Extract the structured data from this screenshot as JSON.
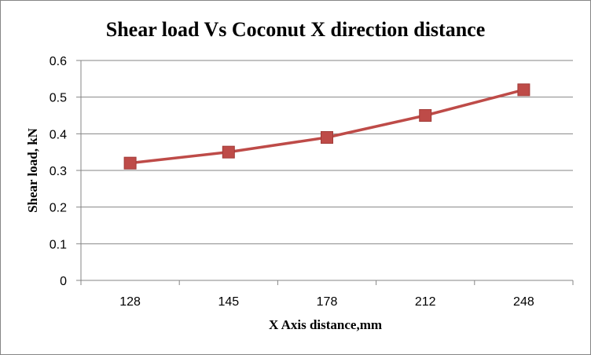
{
  "chart_data": {
    "type": "line",
    "title": "Shear load Vs Coconut X direction distance",
    "xlabel": "X Axis distance,mm",
    "ylabel": "Shear load, kN",
    "categories": [
      "128",
      "145",
      "178",
      "212",
      "248"
    ],
    "series": [
      {
        "values": [
          0.32,
          0.35,
          0.39,
          0.45,
          0.52
        ],
        "color": "#be4b48",
        "marker": "square"
      }
    ],
    "ylim": [
      0,
      0.6
    ],
    "yticks": [
      "0",
      "0.1",
      "0.2",
      "0.3",
      "0.4",
      "0.5",
      "0.6"
    ],
    "grid": "horizontal",
    "legend": "none"
  }
}
